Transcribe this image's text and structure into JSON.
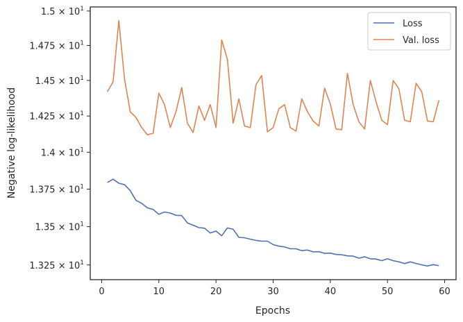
{
  "chart_data": {
    "type": "line",
    "title": "",
    "xlabel": "Epochs",
    "ylabel": "Negative log-likelihood",
    "yscale": "log",
    "xlim": [
      -2,
      62
    ],
    "ylim": [
      13.155,
      15.03
    ],
    "grid": false,
    "legend_position": "top-right",
    "x_ticks": [
      {
        "value": 0,
        "label": "0"
      },
      {
        "value": 10,
        "label": "10"
      },
      {
        "value": 20,
        "label": "20"
      },
      {
        "value": 30,
        "label": "30"
      },
      {
        "value": 40,
        "label": "40"
      },
      {
        "value": 50,
        "label": "50"
      },
      {
        "value": 60,
        "label": "60"
      }
    ],
    "y_ticks": [
      {
        "value": 13.25,
        "mantissa": "1.325"
      },
      {
        "value": 13.5,
        "mantissa": "1.35"
      },
      {
        "value": 13.75,
        "mantissa": "1.375"
      },
      {
        "value": 14.0,
        "mantissa": "1.4"
      },
      {
        "value": 14.25,
        "mantissa": "1.425"
      },
      {
        "value": 14.5,
        "mantissa": "1.45"
      },
      {
        "value": 14.75,
        "mantissa": "1.475"
      },
      {
        "value": 15.0,
        "mantissa": "1.5"
      }
    ],
    "y_tick_base": "10",
    "y_tick_exponent": "1",
    "y_tick_times": "×",
    "x": [
      1,
      2,
      3,
      4,
      5,
      6,
      7,
      8,
      9,
      10,
      11,
      12,
      13,
      14,
      15,
      16,
      17,
      18,
      19,
      20,
      21,
      22,
      23,
      24,
      25,
      26,
      27,
      28,
      29,
      30,
      31,
      32,
      33,
      34,
      35,
      36,
      37,
      38,
      39,
      40,
      41,
      42,
      43,
      44,
      45,
      46,
      47,
      48,
      49,
      50,
      51,
      52,
      53,
      54,
      55,
      56,
      57,
      58,
      59
    ],
    "series": [
      {
        "name": "Loss",
        "color": "#4c72b0",
        "values": [
          13.795,
          13.817,
          13.79,
          13.78,
          13.74,
          13.675,
          13.655,
          13.625,
          13.614,
          13.582,
          13.597,
          13.59,
          13.575,
          13.573,
          13.525,
          13.51,
          13.494,
          13.49,
          13.458,
          13.471,
          13.44,
          13.492,
          13.483,
          13.43,
          13.427,
          13.418,
          13.41,
          13.405,
          13.405,
          13.382,
          13.372,
          13.367,
          13.355,
          13.355,
          13.343,
          13.347,
          13.335,
          13.336,
          13.325,
          13.327,
          13.318,
          13.316,
          13.309,
          13.307,
          13.294,
          13.303,
          13.29,
          13.288,
          13.278,
          13.29,
          13.278,
          13.27,
          13.259,
          13.27,
          13.26,
          13.251,
          13.243,
          13.252,
          13.245
        ]
      },
      {
        "name": "Val. loss",
        "color": "#dd8452",
        "values": [
          14.42,
          14.49,
          14.93,
          14.51,
          14.28,
          14.24,
          14.17,
          14.12,
          14.13,
          14.41,
          14.33,
          14.17,
          14.28,
          14.45,
          14.2,
          14.135,
          14.32,
          14.22,
          14.33,
          14.17,
          14.79,
          14.65,
          14.2,
          14.37,
          14.18,
          14.17,
          14.47,
          14.535,
          14.14,
          14.17,
          14.3,
          14.33,
          14.17,
          14.145,
          14.37,
          14.28,
          14.215,
          14.18,
          14.445,
          14.335,
          14.16,
          14.155,
          14.55,
          14.33,
          14.21,
          14.16,
          14.5,
          14.35,
          14.22,
          14.19,
          14.5,
          14.44,
          14.22,
          14.21,
          14.48,
          14.42,
          14.215,
          14.21,
          14.36
        ]
      }
    ]
  }
}
